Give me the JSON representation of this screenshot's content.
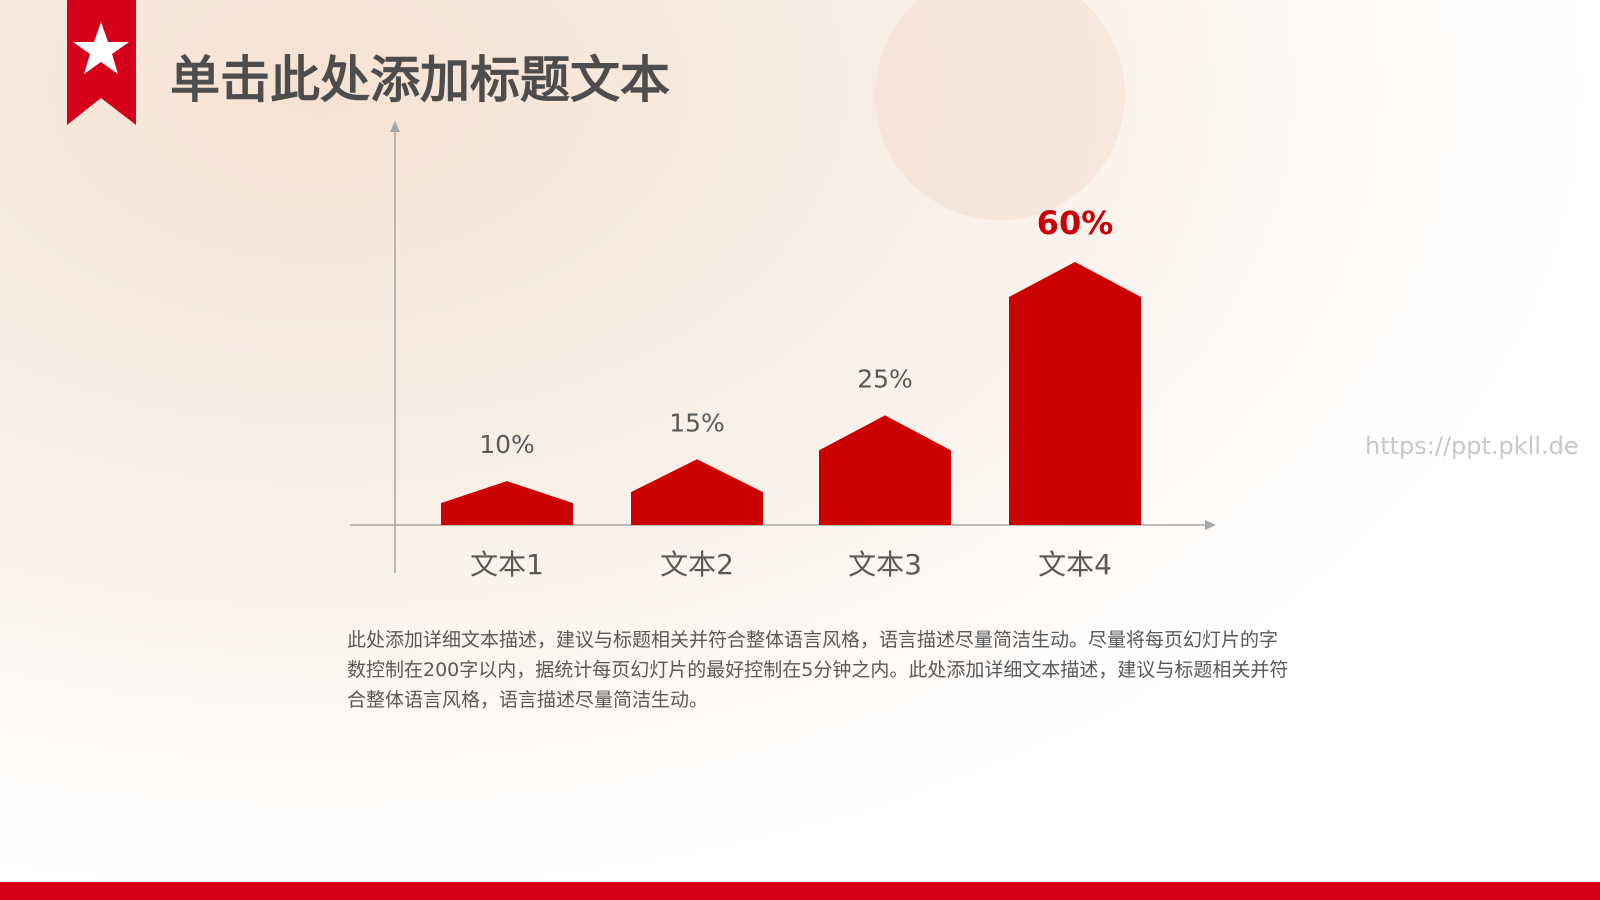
{
  "header": {
    "title": "单击此处添加标题文本"
  },
  "chart_data": {
    "type": "bar",
    "categories": [
      "文本1",
      "文本2",
      "文本3",
      "文本4"
    ],
    "values": [
      10,
      15,
      25,
      60
    ],
    "value_labels": [
      "10%",
      "15%",
      "25%",
      "60%"
    ],
    "value_label_colors": [
      "#595959",
      "#595959",
      "#595959",
      "#c8000a"
    ],
    "color": "#cc0000"
  },
  "body": {
    "paragraph": "此处添加详细文本描述，建议与标题相关并符合整体语言风格，语言描述尽量简洁生动。尽量将每页幻灯片的字数控制在200字以内，据统计每页幻灯片的最好控制在5分钟之内。此处添加详细文本描述，建议与标题相关并符合整体语言风格，语言描述尽量简洁生动。"
  },
  "watermark": "https://ppt.pkll.de"
}
